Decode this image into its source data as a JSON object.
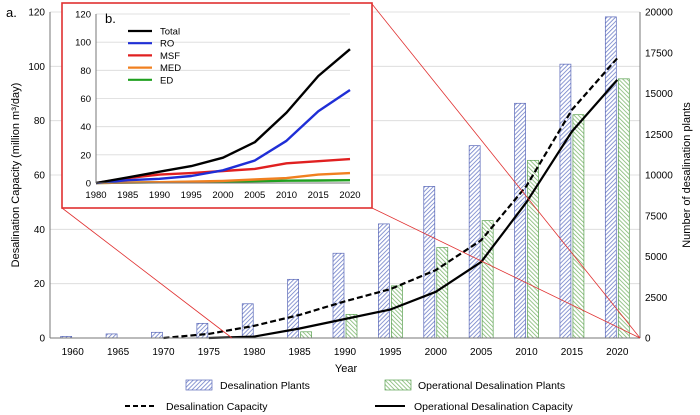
{
  "chart_data": [
    {
      "panel_label": "a.",
      "type": "bar",
      "xlabel": "Year",
      "ylabel": "Desalination Capacity (million m³/day)",
      "y2label": "Number of desalination plants",
      "categories": [
        "1960",
        "1965",
        "1970",
        "1975",
        "1980",
        "1985",
        "1990",
        "1995",
        "2000",
        "2005",
        "2010",
        "2015",
        "2020"
      ],
      "ylim": [
        0,
        120
      ],
      "y_ticks": [
        "0",
        "20",
        "40",
        "60",
        "80",
        "100",
        "120"
      ],
      "y2lim": [
        0,
        20000
      ],
      "y2_ticks": [
        "0",
        "2500",
        "5000",
        "7500",
        "10000",
        "12500",
        "15000",
        "17500",
        "20000"
      ],
      "bars": [
        {
          "name": "Desalination Plants",
          "axis": "right",
          "color": "#7f8fcc",
          "values": [
            100,
            250,
            350,
            900,
            2100,
            3600,
            5200,
            7000,
            9300,
            11800,
            14400,
            16800,
            19700
          ]
        },
        {
          "name": "Operational Desalination Plants",
          "axis": "right",
          "color": "#8fc080",
          "values": [
            0,
            0,
            0,
            0,
            0,
            380,
            1450,
            3200,
            5550,
            7200,
            10900,
            13700,
            15900
          ]
        }
      ],
      "series": [
        {
          "name": "Desalination Capacity",
          "axis": "left",
          "style": "dashed",
          "color": "#000000",
          "x": [
            1970,
            1975,
            1980,
            1985,
            1990,
            1995,
            2000,
            2005,
            2010,
            2015,
            2020
          ],
          "values": [
            0,
            1.5,
            4.5,
            8.5,
            13.5,
            18,
            25,
            36,
            56,
            84,
            103
          ]
        },
        {
          "name": "Operational Desalination Capacity",
          "axis": "left",
          "style": "solid",
          "color": "#000000",
          "x": [
            1975,
            1980,
            1985,
            1990,
            1995,
            2000,
            2005,
            2010,
            2015,
            2020
          ],
          "values": [
            0,
            0.5,
            3.5,
            7,
            10.5,
            17,
            28,
            50,
            76,
            95
          ]
        }
      ],
      "legend": [
        "Desalination Plants",
        "Operational Desalination Plants",
        "Desalination Capacity",
        "Operational Desalination Capacity"
      ],
      "legend_position": "bottom",
      "grid": true
    },
    {
      "panel_label": "b.",
      "type": "line",
      "x": [
        1980,
        1985,
        1990,
        1995,
        2000,
        2005,
        2010,
        2015,
        2020
      ],
      "x_ticks": [
        "1980",
        "1985",
        "1990",
        "1995",
        "2000",
        "2005",
        "2010",
        "2015",
        "2020"
      ],
      "ylim": [
        0,
        120
      ],
      "y_ticks": [
        "0",
        "20",
        "40",
        "60",
        "80",
        "100",
        "120"
      ],
      "series": [
        {
          "name": "Total",
          "color": "#000000",
          "values": [
            0,
            4,
            8,
            12,
            18,
            29,
            50,
            76,
            95
          ]
        },
        {
          "name": "RO",
          "color": "#1f2ed6",
          "values": [
            0,
            2,
            3,
            5,
            9,
            16,
            30,
            51,
            66
          ]
        },
        {
          "name": "MSF",
          "color": "#e02020",
          "values": [
            0,
            3.5,
            6,
            7,
            8.5,
            10,
            14,
            15.5,
            17
          ]
        },
        {
          "name": "MED",
          "color": "#f08020",
          "values": [
            0,
            0.3,
            0.6,
            1,
            1.5,
            2.5,
            3.5,
            6,
            7
          ]
        },
        {
          "name": "ED",
          "color": "#20a020",
          "values": [
            0,
            0.3,
            0.5,
            0.8,
            1,
            1.3,
            1.6,
            1.8,
            2
          ]
        }
      ],
      "legend_position": "top-left",
      "grid": true
    }
  ]
}
